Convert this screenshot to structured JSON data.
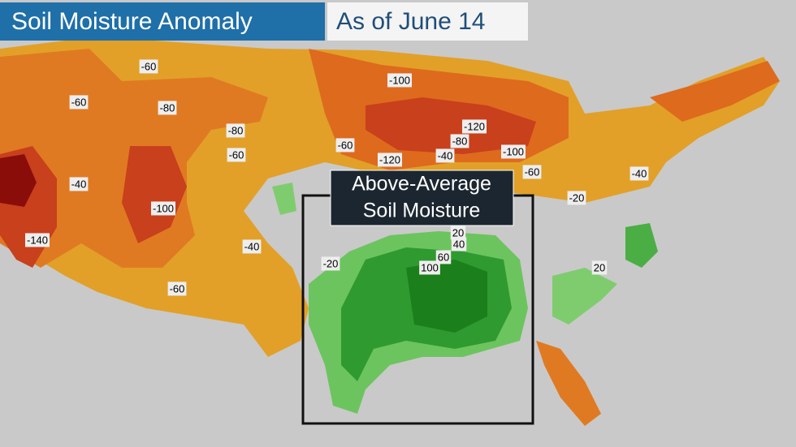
{
  "header": {
    "title": "Soil Moisture Anomaly",
    "date": "As of June 14"
  },
  "annotation": {
    "lines": [
      "Above-Average",
      "Soil Moisture"
    ]
  },
  "contour_labels": [
    "-60",
    "-60",
    "-80",
    "-80",
    "-60",
    "-40",
    "-100",
    "-140",
    "-40",
    "-60",
    "-100",
    "-120",
    "-80",
    "-60",
    "-120",
    "-40",
    "-100",
    "-60",
    "-40",
    "-20",
    "-20",
    "20",
    "40",
    "60",
    "100",
    "20"
  ]
}
